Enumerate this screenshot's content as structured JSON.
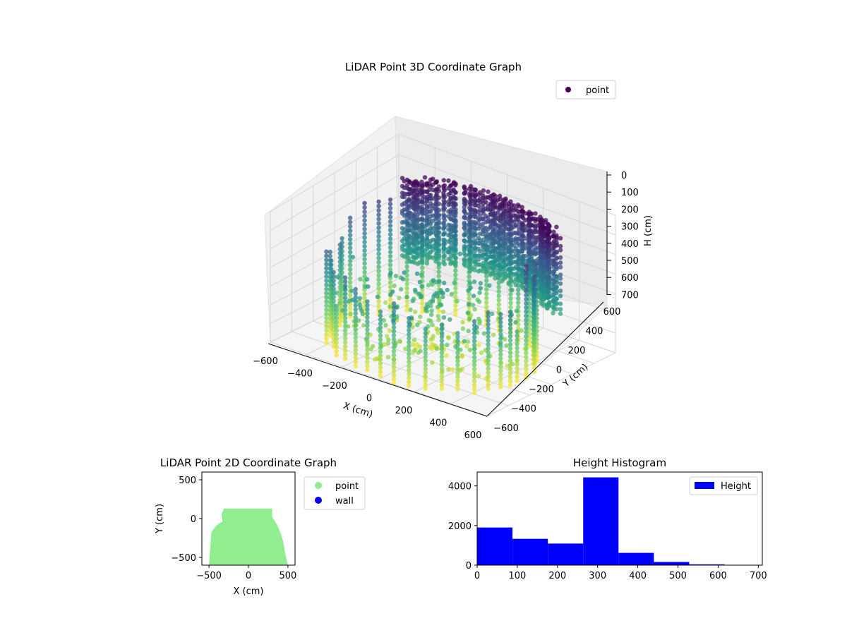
{
  "chart_data": [
    {
      "type": "scatter3d",
      "title": "LiDAR Point 3D Coordinate Graph",
      "xlabel": "X (cm)",
      "ylabel": "Y (cm)",
      "zlabel": "H (cm)",
      "xlim": [
        -600,
        600
      ],
      "ylim": [
        -600,
        600
      ],
      "zlim": [
        700,
        0
      ],
      "xticks": [
        "−600",
        "−400",
        "−200",
        "0",
        "200",
        "400",
        "600"
      ],
      "yticks": [
        "−600",
        "−400",
        "−200",
        "0",
        "200",
        "400",
        "600"
      ],
      "zticks": [
        "0",
        "100",
        "200",
        "300",
        "400",
        "500",
        "600",
        "700"
      ],
      "colormap": "viridis",
      "legend": {
        "position": "top-right",
        "entries": [
          {
            "label": "point",
            "color": "#440154"
          }
        ]
      },
      "grid": true,
      "shape": "cylindrical wall of points, radius ~500 cm, heights 0–700 cm, denser at rear-right"
    },
    {
      "type": "scatter",
      "title": "LiDAR Point 2D Coordinate Graph",
      "xlabel": "X (cm)",
      "ylabel": "Y (cm)",
      "xlim": [
        -590,
        590
      ],
      "ylim": [
        -600,
        600
      ],
      "xticks": [
        "−500",
        "0",
        "500"
      ],
      "yticks": [
        "−500",
        "0",
        "500"
      ],
      "legend": {
        "position": "outside-right",
        "entries": [
          {
            "label": "point",
            "color": "#90ee90"
          },
          {
            "label": "wall",
            "color": "#0000ff"
          }
        ]
      },
      "region": {
        "x": [
          -500,
          500
        ],
        "y": [
          -600,
          130
        ],
        "color": "#90ee90"
      }
    },
    {
      "type": "histogram",
      "title": "Height Histogram",
      "xlim": [
        0,
        710
      ],
      "ylim": [
        0,
        4700
      ],
      "xticks": [
        "0",
        "100",
        "200",
        "300",
        "400",
        "500",
        "600",
        "700"
      ],
      "yticks": [
        "0",
        "2000",
        "4000"
      ],
      "bins": [
        0,
        88,
        176,
        264,
        352,
        440,
        528,
        616,
        704
      ],
      "counts": [
        1900,
        1330,
        1090,
        4430,
        620,
        160,
        40,
        5
      ],
      "color": "#0000ff",
      "legend": {
        "position": "top-right",
        "entries": [
          {
            "label": "Height",
            "color": "#0000ff"
          }
        ]
      }
    }
  ]
}
